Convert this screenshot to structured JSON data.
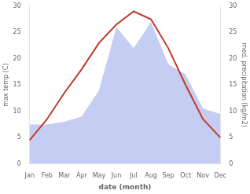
{
  "chart_data": {
    "type": "line",
    "xlabel": "date (month)",
    "ylabel": "max temp (C)",
    "y2label": "med. precipitation (kg/m2)",
    "categories": [
      "Jan",
      "Feb",
      "Mar",
      "Apr",
      "May",
      "Jun",
      "Jul",
      "Aug",
      "Sep",
      "Oct",
      "Nov",
      "Dec"
    ],
    "series": [
      {
        "type": "area",
        "axis": "y2",
        "color": "#c5cef2",
        "values": [
          7.5,
          7.5,
          8.0,
          9.0,
          14.0,
          26.0,
          22.0,
          27.0,
          19.0,
          17.0,
          10.5,
          9.5
        ]
      },
      {
        "type": "line",
        "axis": "y",
        "color": "#c0392b",
        "values": [
          4.5,
          8.5,
          13.5,
          18.0,
          23.0,
          26.5,
          29.0,
          27.5,
          22.0,
          15.0,
          8.5,
          5.0
        ]
      }
    ],
    "ylim": [
      0,
      30
    ],
    "yticks": [
      0,
      5,
      10,
      15,
      20,
      25,
      30
    ],
    "y2lim": [
      0,
      30
    ],
    "y2ticks": [
      0,
      5,
      10,
      15,
      20,
      25,
      30
    ],
    "grid": false
  }
}
